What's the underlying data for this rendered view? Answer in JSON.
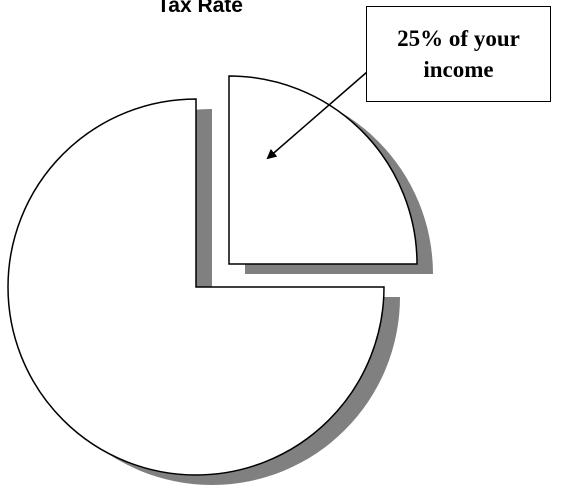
{
  "chart_data": {
    "type": "pie",
    "title": "Tax Rate",
    "exploded": true,
    "shadow": true,
    "slices": [
      {
        "label": "",
        "value": 25
      },
      {
        "label": "",
        "value": 75
      }
    ],
    "annotation": {
      "lines": [
        "25% of your",
        "income"
      ],
      "points_to_slice": 0
    },
    "colors": {
      "slice_fill": "#ffffff",
      "slice_stroke": "#000000",
      "shadow": "#808080"
    }
  }
}
